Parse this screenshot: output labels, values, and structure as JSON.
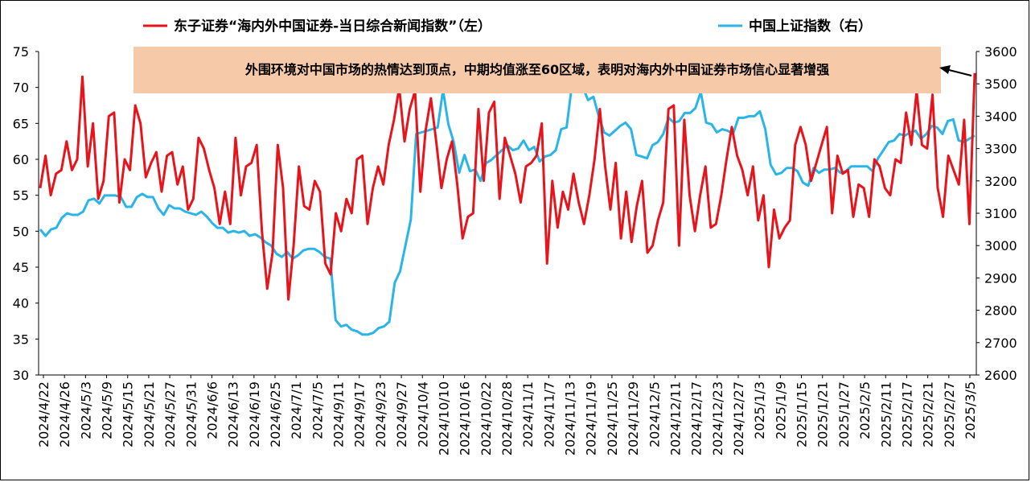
{
  "chart_data": {
    "type": "line",
    "title": "",
    "legend_position": "top",
    "annotation": "外围环境对中国市场的热情达到顶点，中期均值涨至60区域，表明对海内外中国证券市场信心显著增强",
    "x_tick_labels": [
      "2024/4/22",
      "2024/4/26",
      "2024/5/3",
      "2024/5/9",
      "2024/5/15",
      "2024/5/21",
      "2024/5/27",
      "2024/5/31",
      "2024/6/6",
      "2024/6/13",
      "2024/6/19",
      "2024/6/25",
      "2024/7/1",
      "2024/7/5",
      "2024/9/11",
      "2024/9/17",
      "2024/9/23",
      "2024/9/27",
      "2024/10/4",
      "2024/10/10",
      "2024/10/16",
      "2024/10/22",
      "2024/10/28",
      "2024/11/1",
      "2024/11/7",
      "2024/11/13",
      "2024/11/19",
      "2024/11/25",
      "2024/11/29",
      "2024/12/5",
      "2024/12/11",
      "2024/12/17",
      "2024/12/23",
      "2024/12/27",
      "2025/1/3",
      "2025/1/9",
      "2025/1/15",
      "2025/1/21",
      "2025/1/27",
      "2025/2/5",
      "2025/2/11",
      "2025/2/17",
      "2025/2/21",
      "2025/2/27",
      "2025/3/5"
    ],
    "y_left": {
      "min": 30,
      "max": 75,
      "step": 5,
      "ticks": [
        "30",
        "35",
        "40",
        "45",
        "50",
        "55",
        "60",
        "65",
        "70",
        "75"
      ]
    },
    "y_right": {
      "min": 2600,
      "max": 3600,
      "step": 100,
      "ticks": [
        "2600",
        "2700",
        "2800",
        "2900",
        "3000",
        "3100",
        "3200",
        "3300",
        "3400",
        "3500",
        "3600"
      ]
    },
    "grid": false,
    "series": [
      {
        "name": "东子证券“海内外中国证券-当日综合新闻指数”（左）",
        "axis": "left",
        "color": "#e8141b",
        "values": [
          56,
          60.5,
          55,
          58,
          58.5,
          62.5,
          58.5,
          60,
          71.5,
          59,
          65,
          54.5,
          57,
          66,
          66.5,
          54,
          60,
          58.5,
          67.5,
          65,
          57.5,
          59.5,
          61,
          55.5,
          60.5,
          61,
          56.5,
          59,
          53,
          54.5,
          63,
          61.5,
          58.5,
          56,
          51,
          55.5,
          51,
          63,
          55,
          59,
          59.5,
          62,
          50,
          42,
          47,
          62,
          56,
          40.5,
          48,
          59,
          53.5,
          53,
          57,
          55.5,
          45.5,
          44,
          52.5,
          50,
          54.5,
          52.5,
          60,
          60.5,
          51,
          56,
          59,
          56.5,
          62,
          65.5,
          70,
          62.5,
          67,
          69.5,
          55.5,
          64,
          68.5,
          62.5,
          56,
          60,
          62.5,
          56.5,
          49,
          52,
          52.5,
          67,
          57,
          66.5,
          68,
          54.5,
          63,
          60.5,
          58,
          54,
          59,
          59.5,
          60.5,
          65,
          45.5,
          57,
          50.5,
          55.5,
          53,
          58,
          54,
          51,
          55,
          60,
          67,
          59,
          53,
          59.5,
          49,
          55.5,
          48.5,
          53.5,
          57,
          47,
          48,
          51.5,
          54,
          67,
          67.5,
          48,
          65.5,
          55,
          50,
          55,
          59,
          50.5,
          51,
          55,
          60,
          64.5,
          60.5,
          58.5,
          55,
          59,
          51.5,
          55,
          45,
          53,
          49,
          50.5,
          51.5,
          62,
          64.5,
          62,
          57,
          59.5,
          62,
          64.5,
          52.5,
          60.5,
          58,
          58.5,
          52,
          56.5,
          56,
          52,
          60,
          59,
          56,
          55,
          60,
          59.5,
          66.5,
          62,
          69.5,
          62,
          61.5,
          69,
          56,
          52,
          60.5,
          58.5,
          56.5,
          65.5,
          51,
          72
        ]
      },
      {
        "name": "中国上证指数（右）",
        "axis": "right",
        "color": "#29b5e8",
        "values": [
          3050,
          3030,
          3050,
          3055,
          3085,
          3100,
          3095,
          3095,
          3105,
          3140,
          3145,
          3130,
          3155,
          3155,
          3155,
          3150,
          3120,
          3120,
          3150,
          3160,
          3150,
          3150,
          3115,
          3095,
          3125,
          3115,
          3115,
          3105,
          3100,
          3095,
          3105,
          3090,
          3070,
          3055,
          3055,
          3040,
          3045,
          3040,
          3045,
          3030,
          3035,
          3025,
          3010,
          3000,
          2975,
          2965,
          2980,
          2960,
          2970,
          2985,
          2990,
          2990,
          2980,
          2965,
          2960,
          2770,
          2750,
          2755,
          2740,
          2735,
          2725,
          2725,
          2730,
          2745,
          2750,
          2765,
          2885,
          2920,
          3000,
          3080,
          3345,
          3350,
          3355,
          3360,
          3365,
          3480,
          3375,
          3320,
          3225,
          3280,
          3230,
          3235,
          3200,
          3255,
          3265,
          3280,
          3295,
          3310,
          3295,
          3300,
          3325,
          3295,
          3305,
          3260,
          3275,
          3280,
          3295,
          3360,
          3365,
          3495,
          3475,
          3490,
          3450,
          3460,
          3400,
          3350,
          3340,
          3355,
          3370,
          3380,
          3360,
          3280,
          3275,
          3270,
          3310,
          3320,
          3345,
          3395,
          3380,
          3385,
          3410,
          3410,
          3425,
          3475,
          3380,
          3375,
          3350,
          3360,
          3355,
          3345,
          3395,
          3395,
          3400,
          3400,
          3415,
          3360,
          3250,
          3220,
          3225,
          3240,
          3240,
          3230,
          3195,
          3185,
          3240,
          3225,
          3235,
          3235,
          3240,
          3225,
          3230,
          3245,
          3245,
          3245,
          3245,
          3230,
          3270,
          3295,
          3320,
          3325,
          3345,
          3340,
          3350,
          3355,
          3330,
          3345,
          3370,
          3365,
          3345,
          3385,
          3390,
          3325,
          3320,
          3330,
          3340
        ]
      }
    ]
  }
}
